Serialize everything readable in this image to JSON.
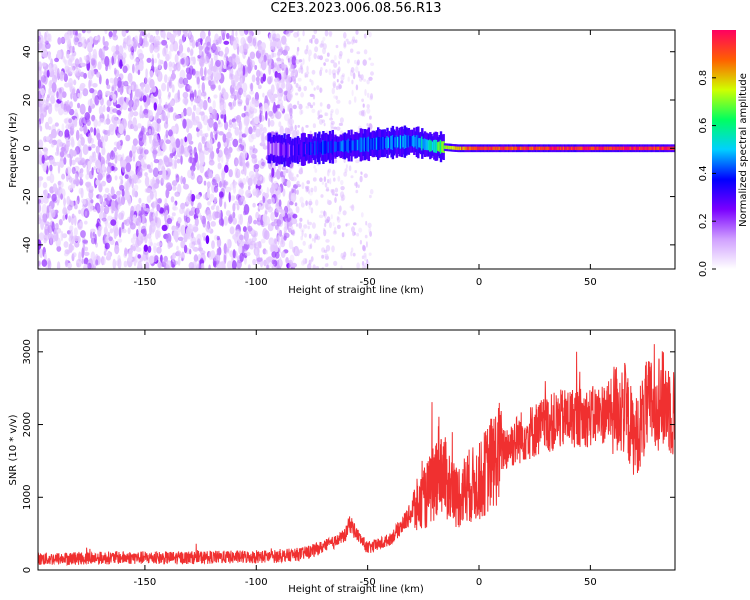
{
  "title": "C2E3.2023.006.08.56.R13",
  "chart_data": [
    {
      "type": "heatmap",
      "xlabel": "Height of straight line (km)",
      "ylabel": "Frequency (Hz)",
      "xlim": [
        -198,
        88
      ],
      "ylim": [
        -50,
        49
      ],
      "x_ticks": [
        -150,
        -100,
        -50,
        0,
        50
      ],
      "y_ticks": [
        -40,
        -20,
        0,
        20,
        40
      ],
      "colorbar": {
        "label": "Normalized spectral amplitude",
        "range": [
          0,
          1
        ],
        "ticks": [
          0.0,
          0.2,
          0.4,
          0.6,
          0.8
        ],
        "colors": [
          "#ffffff",
          "#d0a0ff",
          "#7a00ff",
          "#0000ff",
          "#00d0ff",
          "#00ff60",
          "#d0ff00",
          "#ff6000",
          "#ff0060"
        ]
      },
      "features": {
        "noise_region_x": [
          -198,
          -82
        ],
        "noise_sparse_region_x": [
          -82,
          -48
        ],
        "signal_band": [
          {
            "x": -95,
            "freq": 0,
            "amp": 0.15
          },
          {
            "x": -85,
            "freq": -1,
            "amp": 0.25
          },
          {
            "x": -75,
            "freq": 0,
            "amp": 0.35
          },
          {
            "x": -60,
            "freq": 1,
            "amp": 0.4
          },
          {
            "x": -45,
            "freq": 2,
            "amp": 0.42
          },
          {
            "x": -30,
            "freq": 3,
            "amp": 0.45
          },
          {
            "x": -22,
            "freq": 1,
            "amp": 0.55
          },
          {
            "x": -10,
            "freq": 0,
            "amp": 0.85
          },
          {
            "x": 0,
            "freq": 0,
            "amp": 0.9
          },
          {
            "x": 50,
            "freq": 0,
            "amp": 0.95
          },
          {
            "x": 88,
            "freq": 0,
            "amp": 0.95
          }
        ]
      }
    },
    {
      "type": "line",
      "xlabel": "Height of straight line (km)",
      "ylabel": "SNR (10 * v/v)",
      "xlim": [
        -198,
        88
      ],
      "ylim": [
        0,
        3300
      ],
      "x_ticks": [
        -150,
        -100,
        -50,
        0,
        50
      ],
      "y_ticks": [
        0,
        1000,
        2000,
        3000
      ],
      "color": "#f03030",
      "series": [
        {
          "x": [
            -198,
            -180,
            -160,
            -140,
            -120,
            -100,
            -90,
            -80,
            -75,
            -70,
            -65,
            -60,
            -58,
            -55,
            -52,
            -50,
            -45,
            -40,
            -35,
            -30,
            -25,
            -20,
            -18,
            -15,
            -10,
            -5,
            0,
            5,
            10,
            20,
            30,
            40,
            50,
            60,
            65,
            70,
            75,
            80,
            85,
            88
          ],
          "y": [
            150,
            160,
            170,
            165,
            175,
            180,
            190,
            220,
            260,
            320,
            380,
            480,
            650,
            500,
            380,
            300,
            350,
            420,
            600,
            800,
            950,
            1200,
            1500,
            1250,
            1000,
            1150,
            1200,
            1450,
            1650,
            1850,
            2000,
            2100,
            2100,
            2200,
            2250,
            1800,
            2200,
            2350,
            2300,
            2100
          ]
        }
      ]
    }
  ]
}
